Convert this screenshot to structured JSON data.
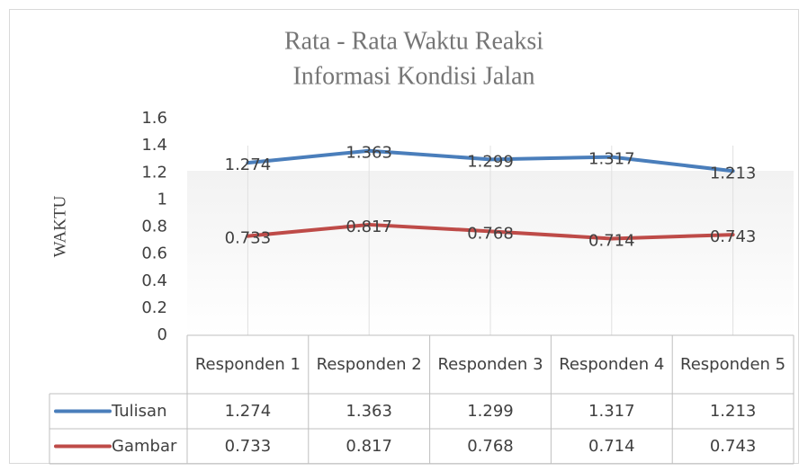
{
  "chart_data": {
    "type": "line",
    "title": "Rata - Rata Waktu Reaksi",
    "subtitle": "Informasi Kondisi Jalan",
    "y_label": "WAKTU",
    "categories": [
      "Responden 1",
      "Responden 2",
      "Responden 3",
      "Responden 4",
      "Responden 5"
    ],
    "series": [
      {
        "name": "Tulisan",
        "color": "#4a7ebb",
        "values": [
          1.274,
          1.363,
          1.299,
          1.317,
          1.213
        ]
      },
      {
        "name": "Gambar",
        "color": "#be4b48",
        "values": [
          0.733,
          0.817,
          0.768,
          0.714,
          0.743
        ]
      }
    ],
    "ylim": [
      0,
      1.6
    ],
    "yticks": [
      0,
      0.2,
      0.4,
      0.6,
      0.8,
      1,
      1.2,
      1.4,
      1.6
    ],
    "data_labels": true,
    "data_table": true
  }
}
